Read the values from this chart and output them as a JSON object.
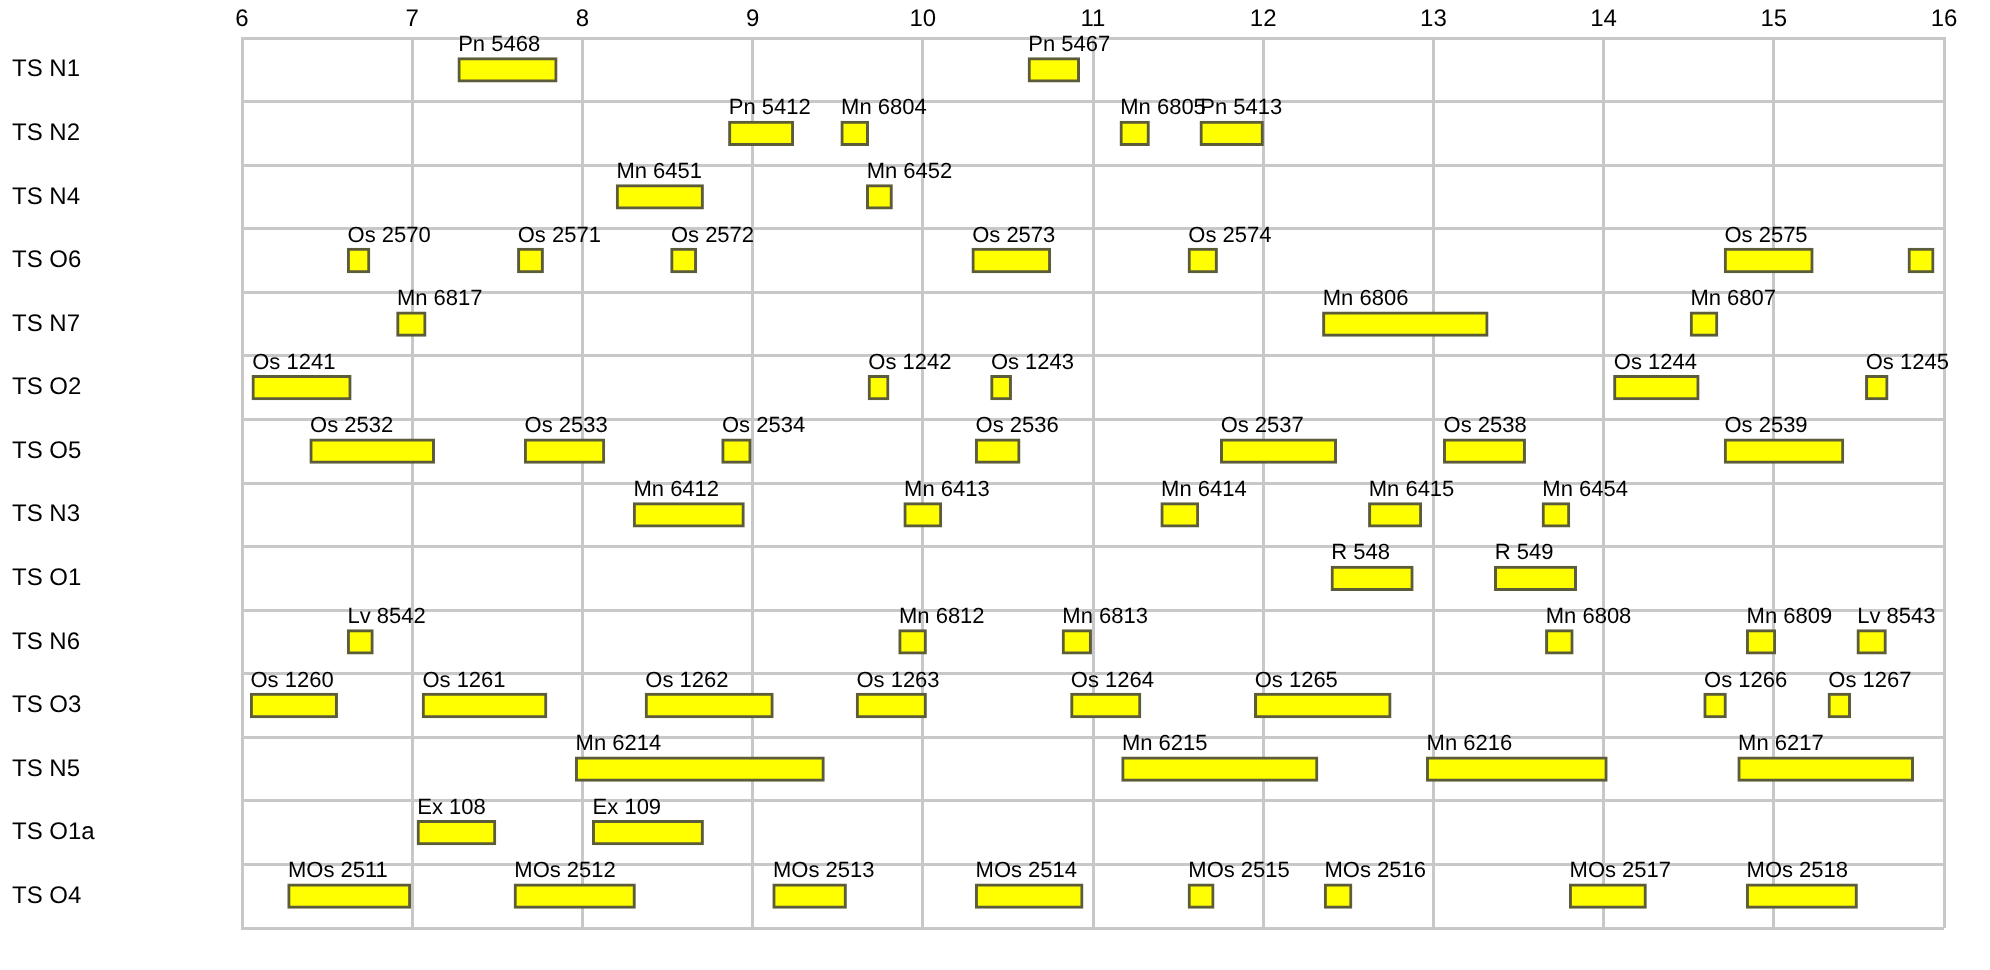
{
  "chart_data": {
    "type": "bar",
    "orientation": "horizontal",
    "categories": [
      "TS N1",
      "TS N2",
      "TS N4",
      "TS O6",
      "TS N7",
      "TS O2",
      "TS O5",
      "TS N3",
      "TS O1",
      "TS N6",
      "TS O3",
      "TS N5",
      "TS O1a",
      "TS O4"
    ],
    "xlim": [
      6,
      16
    ],
    "xticks": [
      6,
      7,
      8,
      9,
      10,
      11,
      12,
      13,
      14,
      15,
      16
    ],
    "grid": true,
    "legend": false,
    "series": [
      {
        "color": "#ffff00",
        "base": [
          7.27,
          8.86,
          8.2,
          6.62,
          6.91,
          6.06,
          6.4,
          8.3,
          12.4,
          6.62,
          6.05,
          7.96,
          7.03,
          6.27
        ],
        "values": [
          0.58,
          0.38,
          0.51,
          0.13,
          0.17,
          0.58,
          0.73,
          0.65,
          0.48,
          0.15,
          0.51,
          1.46,
          0.46,
          0.72
        ],
        "value_labels": [
          "Pn 5468",
          "Pn 5412",
          "Mn 6451",
          "Os 2570",
          "Mn 6817",
          "Os 1241",
          "Os 2532",
          "Mn 6412",
          "R 548",
          "Lv 8542",
          "Os 1260",
          "Mn 6214",
          "Ex 108",
          "MOs 2511"
        ]
      },
      {
        "color": "#ffff00",
        "base": [
          10.62,
          9.52,
          9.67,
          7.62,
          12.35,
          9.68,
          7.66,
          9.89,
          13.36,
          9.86,
          7.06,
          11.17,
          8.06,
          7.6
        ],
        "values": [
          0.3,
          0.16,
          0.15,
          0.15,
          0.97,
          0.12,
          0.47,
          0.22,
          0.48,
          0.16,
          0.73,
          1.15,
          0.65,
          0.71
        ],
        "value_labels": [
          "Pn 5467",
          "Mn 6804",
          "Mn 6452",
          "Os 2571",
          "Mn 6806",
          "Os 1242",
          "Os 2533",
          "Mn 6413",
          "R 549",
          "Mn 6812",
          "Os 1261",
          "Mn 6215",
          "Ex 109",
          "MOs 2512"
        ]
      },
      {
        "color": "#ffff00",
        "base": [
          null,
          11.16,
          null,
          8.52,
          14.51,
          10.4,
          8.82,
          11.4,
          null,
          10.82,
          8.37,
          12.96,
          null,
          9.12
        ],
        "values": [
          null,
          0.17,
          null,
          0.15,
          0.16,
          0.12,
          0.17,
          0.22,
          null,
          0.17,
          0.75,
          1.06,
          null,
          0.43
        ],
        "value_labels": [
          null,
          "Mn 6805",
          null,
          "Os 2572",
          "Mn 6807",
          "Os 1243",
          "Os 2534",
          "Mn 6414",
          null,
          "Mn 6813",
          "Os 1262",
          "Mn 6216",
          null,
          "MOs 2513"
        ]
      },
      {
        "color": "#ffff00",
        "base": [
          null,
          11.63,
          null,
          10.29,
          null,
          14.06,
          10.31,
          12.62,
          null,
          13.66,
          9.61,
          14.79,
          null,
          10.31
        ],
        "values": [
          null,
          0.37,
          null,
          0.46,
          null,
          0.5,
          0.26,
          0.31,
          null,
          0.16,
          0.41,
          1.03,
          null,
          0.63
        ],
        "value_labels": [
          null,
          "Pn 5413",
          null,
          "Os 2573",
          null,
          "Os 1244",
          "Os 2536",
          "Mn 6415",
          null,
          "Mn 6808",
          "Os 1263",
          "Mn 6217",
          null,
          "MOs 2514"
        ]
      },
      {
        "color": "#ffff00",
        "base": [
          null,
          null,
          null,
          11.56,
          null,
          15.54,
          11.75,
          13.64,
          null,
          14.84,
          10.87,
          null,
          null,
          11.56
        ],
        "values": [
          null,
          null,
          null,
          0.17,
          null,
          0.13,
          0.68,
          0.16,
          null,
          0.17,
          0.41,
          null,
          null,
          0.15
        ],
        "value_labels": [
          null,
          null,
          null,
          "Os 2574",
          null,
          "Os 1245",
          "Os 2537",
          "Mn 6454",
          null,
          "Mn 6809",
          "Os 1264",
          null,
          null,
          "MOs 2515"
        ]
      },
      {
        "color": "#ffff00",
        "base": [
          null,
          null,
          null,
          14.71,
          null,
          null,
          13.06,
          null,
          null,
          15.49,
          11.95,
          null,
          null,
          12.36
        ],
        "values": [
          null,
          null,
          null,
          0.52,
          null,
          null,
          0.48,
          null,
          null,
          0.17,
          0.8,
          null,
          null,
          0.16
        ],
        "value_labels": [
          null,
          null,
          null,
          "Os 2575",
          null,
          null,
          "Os 2538",
          null,
          null,
          "Lv 8543",
          "Os 1265",
          null,
          null,
          "MOs 2516"
        ]
      },
      {
        "color": "#ffff00",
        "base": [
          null,
          null,
          null,
          15.79,
          null,
          null,
          14.71,
          null,
          null,
          null,
          14.59,
          null,
          null,
          13.8
        ],
        "values": [
          null,
          null,
          null,
          0.15,
          null,
          null,
          0.7,
          null,
          null,
          null,
          0.13,
          null,
          null,
          0.45
        ],
        "value_labels": [
          null,
          null,
          null,
          null,
          null,
          null,
          "Os 2539",
          null,
          null,
          null,
          "Os 1266",
          null,
          null,
          "MOs 2517"
        ]
      },
      {
        "color": "#ffff00",
        "base": [
          null,
          null,
          null,
          null,
          null,
          null,
          null,
          null,
          null,
          null,
          15.32,
          null,
          null,
          14.84
        ],
        "values": [
          null,
          null,
          null,
          null,
          null,
          null,
          null,
          null,
          null,
          null,
          0.13,
          null,
          null,
          0.65
        ],
        "value_labels": [
          null,
          null,
          null,
          null,
          null,
          null,
          null,
          null,
          null,
          null,
          "Os 1267",
          null,
          null,
          "MOs 2518"
        ]
      }
    ]
  }
}
